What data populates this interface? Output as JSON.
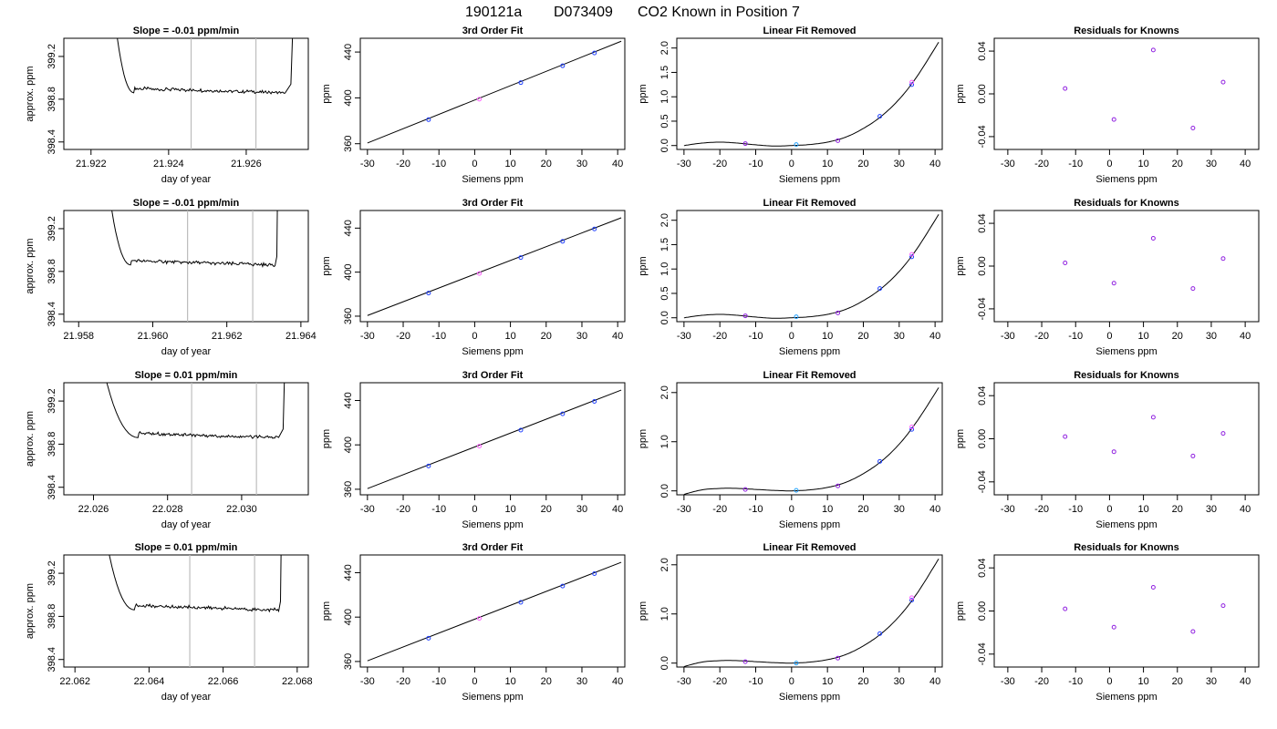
{
  "figure": {
    "title_parts": [
      "190121a",
      "D073409",
      "CO2 Known in Position  7"
    ]
  },
  "colors": {
    "axis": "#000000",
    "marker_lines": "#bdbdbd",
    "pt_blue": "#2040ff",
    "pt_purple": "#9020e0",
    "pt_pink": "#ff60ff",
    "pt_cyan": "#20a0ff"
  },
  "chart_data": [
    {
      "type": "line",
      "panel": "timeseries",
      "row": 0,
      "title": "Slope =  -0.01  ppm/min",
      "xlabel": "day of year",
      "ylabel": "approx. ppm",
      "xlim": [
        21.9213,
        21.9276
      ],
      "ylim": [
        398.33,
        399.37
      ],
      "xticks": [
        "21.922",
        "21.924",
        "21.926"
      ],
      "xtick_values": [
        21.922,
        21.924,
        21.926
      ],
      "yticks": [
        "398.4",
        "398.8",
        "399.2"
      ],
      "ytick_values": [
        398.4,
        398.8,
        399.2
      ],
      "markers": [
        21.92458,
        21.92625
      ],
      "rise_start": 21.9226,
      "plateau_start": 21.9231,
      "plateau_end": 21.927,
      "fall_end": 21.92715,
      "plateau_level": 398.86
    },
    {
      "type": "line",
      "panel": "fit",
      "row": 0,
      "title": "3rd Order Fit",
      "xlabel": "Siemens ppm",
      "ylabel": "ppm",
      "xlim": [
        -32,
        42
      ],
      "ylim": [
        355,
        452
      ],
      "xticks": [
        "-30",
        "-20",
        "-10",
        "0",
        "10",
        "20",
        "30",
        "40"
      ],
      "xtick_values": [
        -30,
        -20,
        -10,
        0,
        10,
        20,
        30,
        40
      ],
      "yticks": [
        "360",
        "400",
        "440"
      ],
      "ytick_values": [
        360,
        400,
        440
      ],
      "line": [
        [
          -30,
          360.6
        ],
        [
          41,
          449.4
        ]
      ],
      "points": [
        [
          -12.9,
          381.0
        ],
        [
          1.3,
          398.8
        ],
        [
          12.9,
          413.3
        ],
        [
          24.6,
          428.0
        ],
        [
          33.5,
          439.2
        ]
      ]
    },
    {
      "type": "scatter",
      "panel": "linear_removed",
      "row": 0,
      "title": "Linear Fit Removed",
      "xlabel": "Siemens ppm",
      "ylabel": "ppm",
      "xlim": [
        -32,
        42
      ],
      "ylim": [
        -0.08,
        2.2
      ],
      "xticks": [
        "-30",
        "-20",
        "-10",
        "0",
        "10",
        "20",
        "30",
        "40"
      ],
      "xtick_values": [
        -30,
        -20,
        -10,
        0,
        10,
        20,
        30,
        40
      ],
      "yticks": [
        "0.0",
        "0.5",
        "1.0",
        "1.5",
        "2.0"
      ],
      "ytick_values": [
        0,
        0.5,
        1.0,
        1.5,
        2.0
      ],
      "curve_pts": [
        [
          -30,
          0.0
        ],
        [
          -25,
          0.05
        ],
        [
          -20,
          0.07
        ],
        [
          -15,
          0.05
        ],
        [
          -10,
          0.015
        ],
        [
          -5,
          -0.01
        ],
        [
          0,
          0.0
        ],
        [
          5,
          0.02
        ],
        [
          10,
          0.07
        ],
        [
          15,
          0.17
        ],
        [
          20,
          0.35
        ],
        [
          25,
          0.6
        ],
        [
          30,
          0.95
        ],
        [
          35,
          1.42
        ],
        [
          41,
          2.12
        ]
      ],
      "points": [
        [
          -12.9,
          0.04
        ],
        [
          1.3,
          0.02
        ],
        [
          12.9,
          0.1
        ],
        [
          24.6,
          0.6
        ],
        [
          33.5,
          1.25
        ],
        [
          33.5,
          1.3
        ]
      ]
    },
    {
      "type": "scatter",
      "panel": "residuals",
      "row": 0,
      "title": "Residuals for Knowns",
      "xlabel": "Siemens ppm",
      "ylabel": "ppm",
      "xlim": [
        -34,
        44
      ],
      "ylim": [
        -0.052,
        0.052
      ],
      "xticks": [
        "-30",
        "-20",
        "-10",
        "0",
        "10",
        "20",
        "30",
        "40"
      ],
      "xtick_values": [
        -30,
        -20,
        -10,
        0,
        10,
        20,
        30,
        40
      ],
      "yticks": [
        "-0.04",
        "0.00",
        "0.04"
      ],
      "ytick_values": [
        -0.04,
        0,
        0.04
      ],
      "points": [
        [
          -13.1,
          0.005
        ],
        [
          1.3,
          -0.024
        ],
        [
          12.9,
          0.041
        ],
        [
          24.6,
          -0.032
        ],
        [
          33.5,
          0.011
        ]
      ]
    },
    {
      "type": "line",
      "panel": "timeseries",
      "row": 1,
      "title": "Slope =  -0.01  ppm/min",
      "xlabel": "day of year",
      "ylabel": "approx. ppm",
      "xlim": [
        21.9576,
        21.9642
      ],
      "ylim": [
        398.33,
        399.37
      ],
      "xticks": [
        "21.958",
        "21.960",
        "21.962",
        "21.964"
      ],
      "xtick_values": [
        21.958,
        21.96,
        21.962,
        21.964
      ],
      "yticks": [
        "398.4",
        "398.8",
        "399.2"
      ],
      "ytick_values": [
        398.4,
        398.8,
        399.2
      ],
      "markers": [
        21.96094,
        21.9627
      ],
      "rise_start": 21.9588,
      "plateau_start": 21.9594,
      "plateau_end": 21.9633,
      "fall_end": 21.96335,
      "plateau_level": 398.86
    },
    {
      "type": "line",
      "panel": "fit",
      "row": 1,
      "title": "3rd Order Fit",
      "xlabel": "Siemens ppm",
      "ylabel": "ppm",
      "xlim": [
        -32,
        42
      ],
      "ylim": [
        355,
        456
      ],
      "xticks": [
        "-30",
        "-20",
        "-10",
        "0",
        "10",
        "20",
        "30",
        "40"
      ],
      "xtick_values": [
        -30,
        -20,
        -10,
        0,
        10,
        20,
        30,
        40
      ],
      "yticks": [
        "360",
        "400",
        "440"
      ],
      "ytick_values": [
        360,
        400,
        440
      ],
      "line": [
        [
          -30,
          360.6
        ],
        [
          41,
          449.4
        ]
      ],
      "points": [
        [
          -12.9,
          381.0
        ],
        [
          1.3,
          398.8
        ],
        [
          12.9,
          413.3
        ],
        [
          24.6,
          428.0
        ],
        [
          33.5,
          439.2
        ]
      ]
    },
    {
      "type": "scatter",
      "panel": "linear_removed",
      "row": 1,
      "title": "Linear Fit Removed",
      "xlabel": "Siemens ppm",
      "ylabel": "ppm",
      "xlim": [
        -32,
        42
      ],
      "ylim": [
        -0.08,
        2.2
      ],
      "xticks": [
        "-30",
        "-20",
        "-10",
        "0",
        "10",
        "20",
        "30",
        "40"
      ],
      "xtick_values": [
        -30,
        -20,
        -10,
        0,
        10,
        20,
        30,
        40
      ],
      "yticks": [
        "0.0",
        "0.5",
        "1.0",
        "1.5",
        "2.0"
      ],
      "ytick_values": [
        0,
        0.5,
        1.0,
        1.5,
        2.0
      ],
      "curve_pts": [
        [
          -30,
          0.0
        ],
        [
          -25,
          0.05
        ],
        [
          -20,
          0.07
        ],
        [
          -15,
          0.05
        ],
        [
          -10,
          0.015
        ],
        [
          -5,
          -0.01
        ],
        [
          0,
          0.0
        ],
        [
          5,
          0.02
        ],
        [
          10,
          0.07
        ],
        [
          15,
          0.17
        ],
        [
          20,
          0.35
        ],
        [
          25,
          0.6
        ],
        [
          30,
          0.95
        ],
        [
          35,
          1.42
        ],
        [
          41,
          2.12
        ]
      ],
      "points": [
        [
          -12.9,
          0.04
        ],
        [
          1.3,
          0.02
        ],
        [
          12.9,
          0.1
        ],
        [
          24.6,
          0.6
        ],
        [
          33.5,
          1.25
        ],
        [
          33.5,
          1.3
        ]
      ]
    },
    {
      "type": "scatter",
      "panel": "residuals",
      "row": 1,
      "title": "Residuals for Knowns",
      "xlabel": "Siemens ppm",
      "ylabel": "ppm",
      "xlim": [
        -34,
        44
      ],
      "ylim": [
        -0.052,
        0.052
      ],
      "xticks": [
        "-30",
        "-20",
        "-10",
        "0",
        "10",
        "20",
        "30",
        "40"
      ],
      "xtick_values": [
        -30,
        -20,
        -10,
        0,
        10,
        20,
        30,
        40
      ],
      "yticks": [
        "-0.04",
        "0.00",
        "0.04"
      ],
      "ytick_values": [
        -0.04,
        0,
        0.04
      ],
      "points": [
        [
          -13.1,
          0.003
        ],
        [
          1.3,
          -0.016
        ],
        [
          12.9,
          0.026
        ],
        [
          24.6,
          -0.021
        ],
        [
          33.5,
          0.007
        ]
      ]
    },
    {
      "type": "line",
      "panel": "timeseries",
      "row": 2,
      "title": "Slope =  0.01  ppm/min",
      "xlabel": "day of year",
      "ylabel": "approx. ppm",
      "xlim": [
        22.0252,
        22.0318
      ],
      "ylim": [
        398.33,
        399.37
      ],
      "xticks": [
        "22.026",
        "22.028",
        "22.030"
      ],
      "xtick_values": [
        22.026,
        22.028,
        22.03
      ],
      "yticks": [
        "398.4",
        "398.8",
        "399.2"
      ],
      "ytick_values": [
        398.4,
        398.8,
        399.2
      ],
      "markers": [
        22.02865,
        22.0304
      ],
      "rise_start": 22.0262,
      "plateau_start": 22.0272,
      "plateau_end": 22.031,
      "fall_end": 22.03112,
      "plateau_level": 398.86
    },
    {
      "type": "line",
      "panel": "fit",
      "row": 2,
      "title": "3rd Order Fit",
      "xlabel": "Siemens ppm",
      "ylabel": "ppm",
      "xlim": [
        -32,
        42
      ],
      "ylim": [
        355,
        456
      ],
      "xticks": [
        "-30",
        "-20",
        "-10",
        "0",
        "10",
        "20",
        "30",
        "40"
      ],
      "xtick_values": [
        -30,
        -20,
        -10,
        0,
        10,
        20,
        30,
        40
      ],
      "yticks": [
        "360",
        "400",
        "440"
      ],
      "ytick_values": [
        360,
        400,
        440
      ],
      "line": [
        [
          -30,
          360.6
        ],
        [
          41,
          449.4
        ]
      ],
      "points": [
        [
          -12.9,
          381.0
        ],
        [
          1.3,
          398.8
        ],
        [
          12.9,
          413.3
        ],
        [
          24.6,
          428.0
        ],
        [
          33.5,
          439.2
        ]
      ]
    },
    {
      "type": "scatter",
      "panel": "linear_removed",
      "row": 2,
      "title": "Linear Fit Removed",
      "xlabel": "Siemens ppm",
      "ylabel": "ppm",
      "xlim": [
        -32,
        42
      ],
      "ylim": [
        -0.08,
        2.2
      ],
      "xticks": [
        "-30",
        "-20",
        "-10",
        "0",
        "10",
        "20",
        "30",
        "40"
      ],
      "xtick_values": [
        -30,
        -20,
        -10,
        0,
        10,
        20,
        30,
        40
      ],
      "yticks": [
        "0.0",
        "1.0",
        "2.0"
      ],
      "ytick_values": [
        0,
        1.0,
        2.0
      ],
      "curve_pts": [
        [
          -30,
          -0.07
        ],
        [
          -25,
          0.02
        ],
        [
          -20,
          0.05
        ],
        [
          -15,
          0.05
        ],
        [
          -10,
          0.03
        ],
        [
          -5,
          0.01
        ],
        [
          0,
          0.0
        ],
        [
          5,
          0.02
        ],
        [
          10,
          0.07
        ],
        [
          15,
          0.17
        ],
        [
          20,
          0.35
        ],
        [
          25,
          0.6
        ],
        [
          30,
          0.95
        ],
        [
          35,
          1.42
        ],
        [
          41,
          2.1
        ]
      ],
      "points": [
        [
          -12.9,
          0.03
        ],
        [
          1.3,
          0.01
        ],
        [
          12.9,
          0.1
        ],
        [
          24.6,
          0.6
        ],
        [
          33.5,
          1.25
        ],
        [
          33.5,
          1.3
        ]
      ]
    },
    {
      "type": "scatter",
      "panel": "residuals",
      "row": 2,
      "title": "Residuals for Knowns",
      "xlabel": "Siemens ppm",
      "ylabel": "ppm",
      "xlim": [
        -34,
        44
      ],
      "ylim": [
        -0.052,
        0.052
      ],
      "xticks": [
        "-30",
        "-20",
        "-10",
        "0",
        "10",
        "20",
        "30",
        "40"
      ],
      "xtick_values": [
        -30,
        -20,
        -10,
        0,
        10,
        20,
        30,
        40
      ],
      "yticks": [
        "-0.04",
        "0.00",
        "0.04"
      ],
      "ytick_values": [
        -0.04,
        0,
        0.04
      ],
      "points": [
        [
          -13.1,
          0.002
        ],
        [
          1.3,
          -0.012
        ],
        [
          12.9,
          0.02
        ],
        [
          24.6,
          -0.016
        ],
        [
          33.5,
          0.005
        ]
      ]
    },
    {
      "type": "line",
      "panel": "timeseries",
      "row": 3,
      "title": "Slope =  0.01  ppm/min",
      "xlabel": "day of year",
      "ylabel": "approx. ppm",
      "xlim": [
        22.0617,
        22.0683
      ],
      "ylim": [
        398.33,
        399.37
      ],
      "xticks": [
        "22.062",
        "22.064",
        "22.066",
        "22.068"
      ],
      "xtick_values": [
        22.062,
        22.064,
        22.066,
        22.068
      ],
      "yticks": [
        "398.4",
        "398.8",
        "399.2"
      ],
      "ytick_values": [
        398.4,
        398.8,
        399.2
      ],
      "markers": [
        22.0651,
        22.06685
      ],
      "rise_start": 22.0628,
      "plateau_start": 22.0636,
      "plateau_end": 22.0675,
      "fall_end": 22.06755,
      "plateau_level": 398.86
    },
    {
      "type": "line",
      "panel": "fit",
      "row": 3,
      "title": "3rd Order Fit",
      "xlabel": "Siemens ppm",
      "ylabel": "ppm",
      "xlim": [
        -32,
        42
      ],
      "ylim": [
        355,
        456
      ],
      "xticks": [
        "-30",
        "-20",
        "-10",
        "0",
        "10",
        "20",
        "30",
        "40"
      ],
      "xtick_values": [
        -30,
        -20,
        -10,
        0,
        10,
        20,
        30,
        40
      ],
      "yticks": [
        "360",
        "400",
        "440"
      ],
      "ytick_values": [
        360,
        400,
        440
      ],
      "line": [
        [
          -30,
          360.6
        ],
        [
          41,
          449.4
        ]
      ],
      "points": [
        [
          -12.9,
          381.0
        ],
        [
          1.3,
          398.8
        ],
        [
          12.9,
          413.3
        ],
        [
          24.6,
          428.0
        ],
        [
          33.5,
          439.2
        ]
      ]
    },
    {
      "type": "scatter",
      "panel": "linear_removed",
      "row": 3,
      "title": "Linear Fit Removed",
      "xlabel": "Siemens ppm",
      "ylabel": "ppm",
      "xlim": [
        -32,
        42
      ],
      "ylim": [
        -0.08,
        2.2
      ],
      "xticks": [
        "-30",
        "-20",
        "-10",
        "0",
        "10",
        "20",
        "30",
        "40"
      ],
      "xtick_values": [
        -30,
        -20,
        -10,
        0,
        10,
        20,
        30,
        40
      ],
      "yticks": [
        "0.0",
        "1.0",
        "2.0"
      ],
      "ytick_values": [
        0,
        1.0,
        2.0
      ],
      "curve_pts": [
        [
          -30,
          -0.07
        ],
        [
          -25,
          0.02
        ],
        [
          -20,
          0.05
        ],
        [
          -15,
          0.05
        ],
        [
          -10,
          0.03
        ],
        [
          -5,
          0.01
        ],
        [
          0,
          0.0
        ],
        [
          5,
          0.02
        ],
        [
          10,
          0.07
        ],
        [
          15,
          0.17
        ],
        [
          20,
          0.35
        ],
        [
          25,
          0.6
        ],
        [
          30,
          0.95
        ],
        [
          35,
          1.42
        ],
        [
          41,
          2.12
        ]
      ],
      "points": [
        [
          -12.9,
          0.03
        ],
        [
          1.3,
          0.0
        ],
        [
          12.9,
          0.1
        ],
        [
          24.6,
          0.6
        ],
        [
          33.5,
          1.28
        ],
        [
          33.5,
          1.33
        ]
      ]
    },
    {
      "type": "scatter",
      "panel": "residuals",
      "row": 3,
      "title": "Residuals for Knowns",
      "xlabel": "Siemens ppm",
      "ylabel": "ppm",
      "xlim": [
        -34,
        44
      ],
      "ylim": [
        -0.052,
        0.052
      ],
      "xticks": [
        "-30",
        "-20",
        "-10",
        "0",
        "10",
        "20",
        "30",
        "40"
      ],
      "xtick_values": [
        -30,
        -20,
        -10,
        0,
        10,
        20,
        30,
        40
      ],
      "yticks": [
        "-0.04",
        "0.00",
        "0.04"
      ],
      "ytick_values": [
        -0.04,
        0,
        0.04
      ],
      "points": [
        [
          -13.1,
          0.002
        ],
        [
          1.3,
          -0.015
        ],
        [
          12.9,
          0.022
        ],
        [
          24.6,
          -0.019
        ],
        [
          33.5,
          0.005
        ]
      ]
    }
  ]
}
